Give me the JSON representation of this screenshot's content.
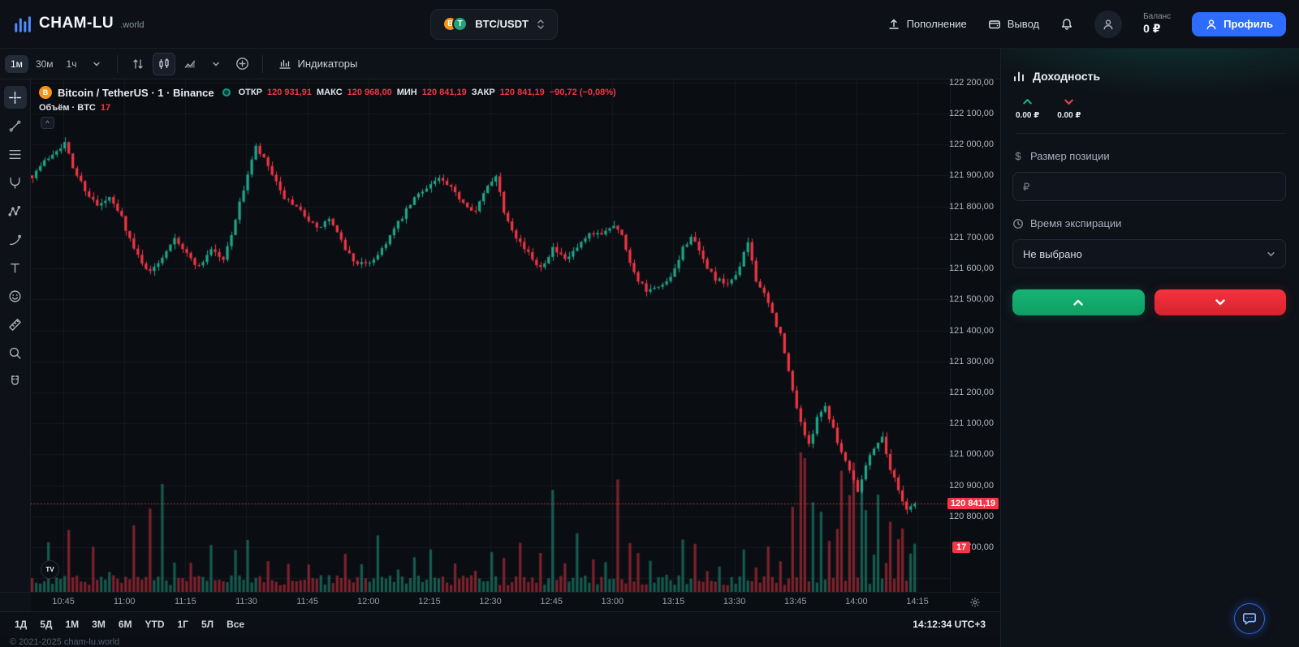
{
  "header": {
    "brand": "CHAM-LU",
    "brand_suffix": ".world",
    "symbol": "BTC/USDT",
    "deposit": "Пополнение",
    "withdraw": "Вывод",
    "balance_label": "Баланс",
    "balance_value": "0 ₽",
    "profile": "Профиль"
  },
  "toolbar": {
    "timeframes": [
      "1м",
      "30м",
      "1ч"
    ],
    "indicators": "Индикаторы"
  },
  "drawing_tools": [
    "crosshair",
    "trend-line",
    "fib-retracement",
    "pitchfork",
    "pattern",
    "brush",
    "text",
    "emoji",
    "ruler",
    "zoom",
    "magnet"
  ],
  "legend": {
    "title": "Bitcoin / TetherUS · 1 · Binance",
    "open_label": "ОТКР",
    "open": "120 931,91",
    "high_label": "МАКС",
    "high": "120 968,00",
    "low_label": "МИН",
    "low": "120 841,19",
    "close_label": "ЗАКР",
    "close": "120 841,19",
    "change": "−90,72 (−0,08%)",
    "volume_label": "Объём · BTC",
    "volume_value": "17"
  },
  "axes": {
    "price_labels": [
      "122 200,00",
      "122 100,00",
      "122 000,00",
      "121 900,00",
      "121 800,00",
      "121 700,00",
      "121 600,00",
      "121 500,00",
      "121 400,00",
      "121 300,00",
      "121 200,00",
      "121 100,00",
      "121 000,00",
      "120 900,00",
      "120 800,00"
    ],
    "bottom_price_label": "700,00",
    "volume_badge": "17",
    "last_price_label": "120 841,19",
    "time_labels": [
      "10:45",
      "11:00",
      "11:15",
      "11:30",
      "11:45",
      "12:00",
      "12:15",
      "12:30",
      "12:45",
      "13:00",
      "13:15",
      "13:30",
      "13:45",
      "14:00",
      "14:15"
    ]
  },
  "range_bar": {
    "ranges": [
      "1Д",
      "5Д",
      "1М",
      "3М",
      "6М",
      "YTD",
      "1Г",
      "5Л",
      "Все"
    ],
    "clock": "14:12:34 UTC+3"
  },
  "panel": {
    "yield_title": "Доходность",
    "up_value": "0.00 ₽",
    "down_value": "0.00 ₽",
    "position_label": "Размер позиции",
    "position_placeholder": "₽",
    "expiry_label": "Время экспирации",
    "expiry_value": "Не выбрано"
  },
  "footer": "© 2021-2025 cham-lu.world",
  "colors": {
    "green": "#1fa98c",
    "red": "#f23645",
    "accent": "#2e6bff",
    "up_arrow": "#12b981",
    "down_arrow": "#ef4444"
  },
  "chart_data": {
    "type": "candlestick",
    "symbol": "BTC/USDT",
    "exchange": "Binance",
    "interval_minutes": 1,
    "start_minute": 637,
    "candle_count": 218,
    "price_max_visible": 122210,
    "price_min_visible": 120556,
    "grid_step": 100,
    "bottom_axis_price": 120700,
    "last_price": 120841.19,
    "price_anchors": [
      [
        637,
        121900
      ],
      [
        640,
        121945
      ],
      [
        643,
        121985
      ],
      [
        645,
        122005
      ],
      [
        647,
        121925
      ],
      [
        650,
        121855
      ],
      [
        653,
        121800
      ],
      [
        656,
        121825
      ],
      [
        659,
        121765
      ],
      [
        662,
        121660
      ],
      [
        666,
        121585
      ],
      [
        669,
        121640
      ],
      [
        672,
        121705
      ],
      [
        675,
        121645
      ],
      [
        678,
        121605
      ],
      [
        681,
        121665
      ],
      [
        684,
        121625
      ],
      [
        687,
        121760
      ],
      [
        690,
        121905
      ],
      [
        692,
        121990
      ],
      [
        695,
        121930
      ],
      [
        698,
        121845
      ],
      [
        701,
        121800
      ],
      [
        704,
        121775
      ],
      [
        707,
        121725
      ],
      [
        710,
        121760
      ],
      [
        713,
        121685
      ],
      [
        716,
        121625
      ],
      [
        719,
        121610
      ],
      [
        722,
        121645
      ],
      [
        725,
        121705
      ],
      [
        728,
        121765
      ],
      [
        731,
        121825
      ],
      [
        734,
        121865
      ],
      [
        737,
        121890
      ],
      [
        740,
        121855
      ],
      [
        743,
        121815
      ],
      [
        746,
        121785
      ],
      [
        749,
        121865
      ],
      [
        751,
        121905
      ],
      [
        753,
        121785
      ],
      [
        756,
        121705
      ],
      [
        759,
        121645
      ],
      [
        762,
        121605
      ],
      [
        765,
        121665
      ],
      [
        768,
        121625
      ],
      [
        771,
        121665
      ],
      [
        774,
        121705
      ],
      [
        777,
        121715
      ],
      [
        780,
        121745
      ],
      [
        782,
        121705
      ],
      [
        785,
        121585
      ],
      [
        788,
        121525
      ],
      [
        791,
        121535
      ],
      [
        794,
        121565
      ],
      [
        797,
        121665
      ],
      [
        799,
        121705
      ],
      [
        802,
        121625
      ],
      [
        805,
        121565
      ],
      [
        808,
        121545
      ],
      [
        811,
        121605
      ],
      [
        813,
        121685
      ],
      [
        815,
        121565
      ],
      [
        818,
        121485
      ],
      [
        821,
        121385
      ],
      [
        824,
        121205
      ],
      [
        826,
        121105
      ],
      [
        828,
        121025
      ],
      [
        830,
        121125
      ],
      [
        832,
        121155
      ],
      [
        834,
        121085
      ],
      [
        836,
        121005
      ],
      [
        838,
        120955
      ],
      [
        840,
        120885
      ],
      [
        842,
        120965
      ],
      [
        844,
        121025
      ],
      [
        846,
        121055
      ],
      [
        848,
        120955
      ],
      [
        850,
        120885
      ],
      [
        852,
        120825
      ],
      [
        854,
        120841.19
      ]
    ],
    "volume_spikes": {
      "641": 3,
      "646": 6,
      "652": 3,
      "656": 2,
      "662": 4,
      "666": 5,
      "669": 9,
      "672": 4,
      "676": 2,
      "681": 3,
      "687": 3,
      "690": 4,
      "695": 2,
      "700": 3,
      "705": 2,
      "710": 2,
      "714": 3,
      "718": 2,
      "722": 4,
      "727": 2,
      "731": 3,
      "735": 3,
      "741": 3,
      "746": 2,
      "750": 4,
      "753": 3,
      "757": 3,
      "762": 4,
      "765": 7,
      "768": 3,
      "771": 4,
      "775": 3,
      "778": 2,
      "781": 7,
      "784": 3,
      "786": 3,
      "789": 2,
      "793": 2,
      "797": 5,
      "800": 3,
      "803": 3,
      "806": 2,
      "809": 2,
      "812": 6,
      "815": 3,
      "818": 4,
      "821": 3,
      "824": 8,
      "826": 9,
      "827": 10,
      "829": 6,
      "831": 5,
      "833": 5,
      "835": 6,
      "836": 9,
      "838": 7,
      "839": 8,
      "841": 6,
      "842": 7,
      "844": 5,
      "845": 6,
      "847": 4,
      "848": 5,
      "850": 4,
      "851": 4,
      "853": 3,
      "854": 3
    }
  }
}
